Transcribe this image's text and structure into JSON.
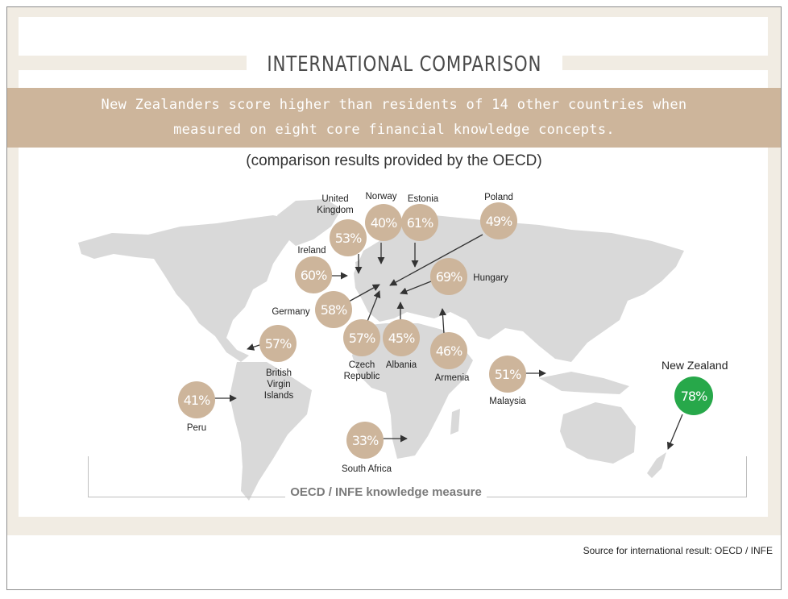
{
  "title": "INTERNATIONAL COMPARISON",
  "banner": {
    "line1": "New Zealanders score higher than residents of 14 other countries when",
    "line2": "measured on eight core financial knowledge concepts."
  },
  "subtitle": "(comparison results provided by the OECD)",
  "measure_label": "OECD / INFE knowledge measure",
  "source": "Source for international result: OECD / INFE",
  "colors": {
    "tan": "#cdb59b",
    "green": "#27a84a",
    "map": "#d9d9d9"
  },
  "countries": {
    "uk": {
      "name": "United\nKingdom",
      "value": "53%"
    },
    "norway": {
      "name": "Norway",
      "value": "40%"
    },
    "estonia": {
      "name": "Estonia",
      "value": "61%"
    },
    "poland": {
      "name": "Poland",
      "value": "49%"
    },
    "ireland": {
      "name": "Ireland",
      "value": "60%"
    },
    "hungary": {
      "name": "Hungary",
      "value": "69%"
    },
    "germany": {
      "name": "Germany",
      "value": "58%"
    },
    "bvi": {
      "name": "British\nVirgin\nIslands",
      "value": "57%"
    },
    "czech": {
      "name": "Czech\nRepublic",
      "value": "57%"
    },
    "albania": {
      "name": "Albania",
      "value": "45%"
    },
    "armenia": {
      "name": "Armenia",
      "value": "46%"
    },
    "malaysia": {
      "name": "Malaysia",
      "value": "51%"
    },
    "peru": {
      "name": "Peru",
      "value": "41%"
    },
    "southafrica": {
      "name": "South Africa",
      "value": "33%"
    },
    "nz": {
      "name": "New Zealand",
      "value": "78%"
    }
  }
}
